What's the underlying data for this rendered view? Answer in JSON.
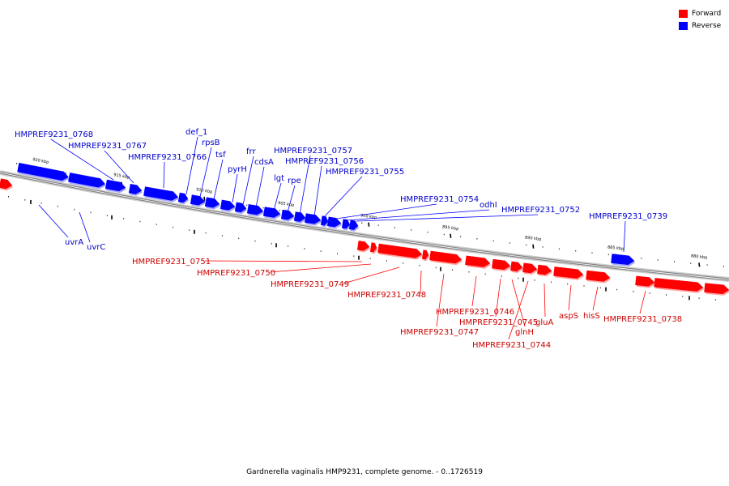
{
  "caption": "Gardnerella vaginalis HMP9231, complete genome. - 0..1726519",
  "legend": [
    {
      "label": "Forward",
      "color": "#ff0000"
    },
    {
      "label": "Reverse",
      "color": "#0000ff"
    }
  ],
  "colors": {
    "forward": "#ff0000",
    "reverse": "#0000ff",
    "forward_label": "#cc0000",
    "reverse_label": "#0000cc",
    "backbone": "#808080"
  },
  "ticks": [
    {
      "label": "920 kbp",
      "kbp": 920
    },
    {
      "label": "915 kbp",
      "kbp": 915
    },
    {
      "label": "910 kbp",
      "kbp": 910
    },
    {
      "label": "905 kbp",
      "kbp": 905
    },
    {
      "label": "900 kbp",
      "kbp": 900
    },
    {
      "label": "895 kbp",
      "kbp": 895
    },
    {
      "label": "890 kbp",
      "kbp": 890
    },
    {
      "label": "885 kbp",
      "kbp": 885
    },
    {
      "label": "880 kbp",
      "kbp": 880
    }
  ],
  "genes": [
    {
      "name": "HMPREF9231_0768",
      "strand": "reverse"
    },
    {
      "name": "HMPREF9231_0767",
      "strand": "reverse"
    },
    {
      "name": "HMPREF9231_0766",
      "strand": "reverse"
    },
    {
      "name": "def_1",
      "strand": "reverse"
    },
    {
      "name": "rpsB",
      "strand": "reverse"
    },
    {
      "name": "tsf",
      "strand": "reverse"
    },
    {
      "name": "pyrH",
      "strand": "reverse"
    },
    {
      "name": "frr",
      "strand": "reverse"
    },
    {
      "name": "cdsA",
      "strand": "reverse"
    },
    {
      "name": "lgt",
      "strand": "reverse"
    },
    {
      "name": "rpe",
      "strand": "reverse"
    },
    {
      "name": "HMPREF9231_0757",
      "strand": "reverse"
    },
    {
      "name": "HMPREF9231_0756",
      "strand": "reverse"
    },
    {
      "name": "HMPREF9231_0755",
      "strand": "reverse"
    },
    {
      "name": "HMPREF9231_0754",
      "strand": "reverse"
    },
    {
      "name": "odhI",
      "strand": "reverse"
    },
    {
      "name": "HMPREF9231_0752",
      "strand": "reverse"
    },
    {
      "name": "HMPREF9231_0739",
      "strand": "reverse"
    },
    {
      "name": "uvrA",
      "strand": "reverse"
    },
    {
      "name": "uvrC",
      "strand": "reverse"
    },
    {
      "name": "HMPREF9231_0751",
      "strand": "forward"
    },
    {
      "name": "HMPREF9231_0750",
      "strand": "forward"
    },
    {
      "name": "HMPREF9231_0749",
      "strand": "forward"
    },
    {
      "name": "HMPREF9231_0748",
      "strand": "forward"
    },
    {
      "name": "HMPREF9231_0747",
      "strand": "forward"
    },
    {
      "name": "HMPREF9231_0746",
      "strand": "forward"
    },
    {
      "name": "HMPREF9231_0745",
      "strand": "forward"
    },
    {
      "name": "HMPREF9231_0744",
      "strand": "forward"
    },
    {
      "name": "glnH",
      "strand": "forward"
    },
    {
      "name": "gluA",
      "strand": "forward"
    },
    {
      "name": "aspS",
      "strand": "forward"
    },
    {
      "name": "hisS",
      "strand": "forward"
    },
    {
      "name": "HMPREF9231_0738",
      "strand": "forward"
    }
  ]
}
